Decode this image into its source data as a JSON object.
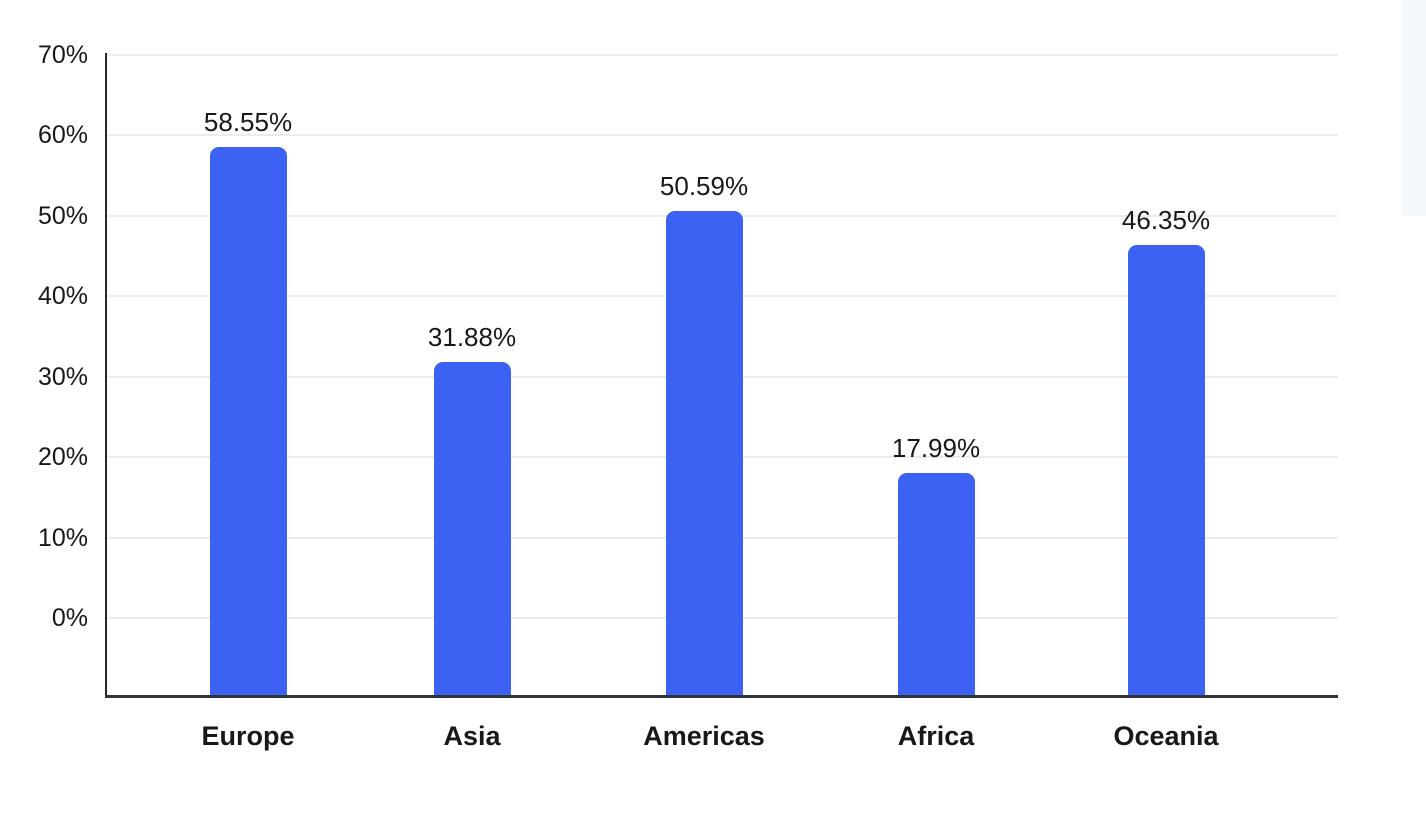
{
  "window": {
    "background_color": "#FFFFFF"
  },
  "side_strip": {
    "color": "#F6F9FB"
  },
  "chart_data": {
    "type": "bar",
    "title": "",
    "xlabel": "",
    "ylabel": "",
    "categories": [
      "Europe",
      "Asia",
      "Americas",
      "Africa",
      "Oceania"
    ],
    "values": [
      58.55,
      31.88,
      50.59,
      17.99,
      46.35
    ],
    "value_labels": [
      "58.55%",
      "31.88%",
      "50.59%",
      "17.99%",
      "46.35%"
    ],
    "y_tick_values": [
      0,
      10,
      20,
      30,
      40,
      50,
      60,
      70
    ],
    "y_tick_labels": [
      "0%",
      "10%",
      "20%",
      "30%",
      "40%",
      "50%",
      "60%",
      "70%"
    ],
    "ylim": [
      -10,
      70
    ],
    "grid": true,
    "legend_position": "none",
    "bar_color": "#3B62F2",
    "grid_color": "#EAECEF",
    "axis_color": "#26282C",
    "text_color": "#17181A"
  }
}
